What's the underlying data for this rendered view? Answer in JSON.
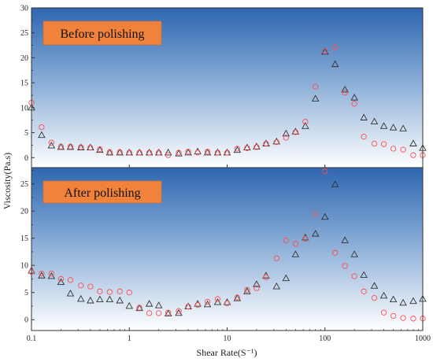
{
  "chart_data": {
    "type": "scatter",
    "xlabel": "Shear Rate(S⁻¹)",
    "ylabel": "Viscosity(Pa.s)",
    "xscale": "log",
    "xlim": [
      0.1,
      1000
    ],
    "xticks": [
      0.1,
      1,
      10,
      100,
      1000
    ],
    "xtick_labels": [
      "0.1",
      "1",
      "10",
      "100",
      "1000"
    ],
    "grid": false,
    "background": "blue-to-white vertical gradient",
    "marker_colors": {
      "triangle": "#333333",
      "circle": "#ff4d4d"
    },
    "annotation_color": "#f0823c",
    "panels": [
      {
        "annotation": "Before polishing",
        "ylim": [
          -2,
          30
        ],
        "yticks": [
          0,
          5,
          10,
          15,
          20,
          25,
          30
        ],
        "series": [
          {
            "marker": "triangle",
            "x": [
              0.1,
              0.127,
              0.16,
              0.2,
              0.25,
              0.32,
              0.4,
              0.5,
              0.63,
              0.8,
              1,
              1.27,
              1.6,
              2,
              2.5,
              3.2,
              4,
              5,
              6.3,
              8,
              10,
              12.7,
              16,
              20,
              25,
              32,
              40,
              50,
              63,
              80,
              100,
              127,
              160,
              200,
              250,
              320,
              400,
              500,
              630,
              800,
              1000
            ],
            "values": [
              10,
              4.5,
              2.4,
              2.1,
              2.1,
              2.0,
              2.0,
              1.5,
              1.0,
              1.0,
              1.0,
              1.0,
              1.0,
              1.0,
              1.0,
              0.8,
              1.0,
              1.2,
              1.0,
              1.0,
              1.0,
              1.5,
              2.0,
              2.2,
              2.8,
              3.2,
              4.8,
              5.2,
              6.3,
              11.8,
              21.2,
              18.7,
              13.6,
              12.0,
              8.0,
              7.2,
              6.3,
              6.0,
              5.8,
              2.8,
              1.9
            ]
          },
          {
            "marker": "circle",
            "x": [
              0.1,
              0.127,
              0.16,
              0.2,
              0.25,
              0.32,
              0.4,
              0.5,
              0.63,
              0.8,
              1,
              1.27,
              1.6,
              2,
              2.5,
              3.2,
              4,
              5,
              6.3,
              8,
              10,
              12.7,
              16,
              20,
              25,
              32,
              40,
              50,
              63,
              80,
              100,
              127,
              160,
              200,
              250,
              320,
              400,
              500,
              630,
              800,
              1000
            ],
            "values": [
              11,
              6.1,
              3.0,
              2.2,
              2.2,
              2.1,
              2.0,
              1.7,
              1.1,
              1.1,
              1.0,
              1.0,
              1.0,
              1.0,
              0.5,
              1.0,
              1.2,
              1.0,
              1.2,
              1.0,
              1.0,
              1.8,
              1.9,
              2.1,
              2.8,
              3.1,
              4.0,
              5.1,
              7.2,
              14.2,
              21.3,
              22.1,
              13.0,
              10.8,
              4.2,
              2.8,
              2.7,
              1.8,
              1.6,
              0.5,
              0.5
            ]
          }
        ]
      },
      {
        "annotation": "After polishing",
        "ylim": [
          -2,
          28
        ],
        "yticks": [
          0,
          5,
          10,
          15,
          20,
          25
        ],
        "series": [
          {
            "marker": "triangle",
            "x": [
              0.1,
              0.127,
              0.16,
              0.2,
              0.25,
              0.32,
              0.4,
              0.5,
              0.63,
              0.8,
              1,
              1.27,
              1.6,
              2,
              2.5,
              3.2,
              4,
              5,
              6.3,
              8,
              10,
              12.7,
              16,
              20,
              25,
              32,
              40,
              50,
              63,
              80,
              100,
              127,
              160,
              200,
              250,
              320,
              400,
              500,
              630,
              800,
              1000
            ],
            "values": [
              9,
              8.1,
              8.0,
              6.9,
              4.8,
              3.8,
              3.5,
              3.7,
              3.7,
              3.5,
              2.5,
              2.1,
              2.9,
              2.6,
              1.1,
              1.2,
              2.4,
              2.9,
              2.8,
              3.2,
              3.2,
              3.9,
              5.2,
              6.5,
              8.1,
              6.1,
              7.6,
              12.0,
              15.1,
              15.8,
              18.9,
              24.9,
              14.6,
              12.0,
              8.2,
              6.2,
              4.4,
              3.7,
              3.1,
              3.4,
              3.8
            ]
          },
          {
            "marker": "circle",
            "x": [
              0.1,
              0.127,
              0.16,
              0.2,
              0.25,
              0.32,
              0.4,
              0.5,
              0.63,
              0.8,
              1,
              1.27,
              1.6,
              2,
              2.5,
              3.2,
              4,
              5,
              6.3,
              8,
              10,
              12.7,
              16,
              20,
              25,
              32,
              40,
              50,
              63,
              80,
              100,
              127,
              160,
              200,
              250,
              320,
              400,
              500,
              630,
              800,
              1000
            ],
            "values": [
              8.8,
              8.5,
              8.5,
              7.5,
              7.3,
              6.3,
              6.1,
              5.2,
              5.1,
              5.2,
              5.0,
              2.2,
              1.2,
              1.2,
              1.3,
              1.6,
              2.4,
              2.7,
              3.3,
              3.8,
              3.0,
              4.1,
              5.5,
              5.8,
              7.8,
              11.3,
              14.6,
              14.0,
              14.9,
              19.5,
              27.3,
              12.3,
              9.9,
              8.0,
              5.2,
              4.0,
              1.3,
              0.7,
              0.3,
              0.2,
              0.2
            ]
          }
        ]
      }
    ]
  }
}
